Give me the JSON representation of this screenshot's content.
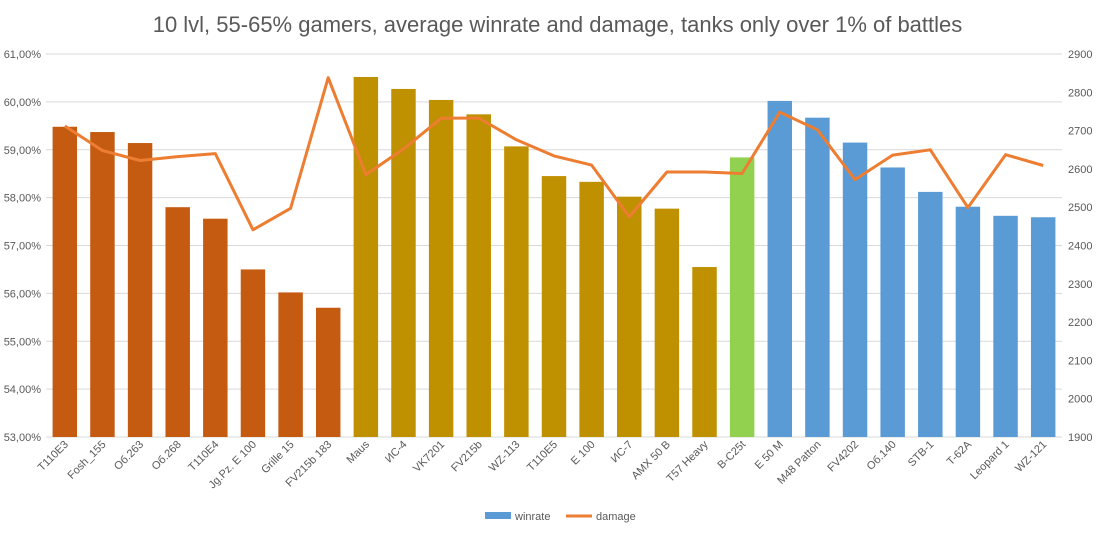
{
  "chart_data": {
    "type": "bar",
    "title": "10 lvl, 55-65% gamers, average winrate and damage, tanks only over 1% of battles",
    "categories": [
      "T110E3",
      "Fosh_155",
      "Об.263",
      "Об.268",
      "T110E4",
      "Jg.Pz. E 100",
      "Grille 15",
      "FV215b 183",
      "Maus",
      "ИС-4",
      "VK7201",
      "FV215b",
      "WZ-113",
      "T110E5",
      "E 100",
      "ИС-7",
      "AMX 50 B",
      "T57 Heavy",
      "B-C25t",
      "E 50 M",
      "M48 Patton",
      "FV4202",
      "Об.140",
      "STB-1",
      "T-62A",
      "Leopard 1",
      "WZ-121"
    ],
    "series": [
      {
        "name": "winrate",
        "type": "bar",
        "axis": "left",
        "values": [
          59.48,
          59.37,
          59.14,
          57.8,
          57.56,
          56.5,
          56.02,
          55.7,
          60.52,
          60.27,
          60.04,
          59.74,
          59.07,
          58.45,
          58.33,
          58.02,
          57.77,
          56.55,
          58.84,
          60.02,
          59.67,
          59.15,
          58.63,
          58.12,
          57.81,
          57.62,
          57.59
        ]
      },
      {
        "name": "damage",
        "type": "line",
        "axis": "right",
        "values": [
          2712,
          2648,
          2622,
          2632,
          2640,
          2441,
          2497,
          2838,
          2585,
          2652,
          2732,
          2733,
          2676,
          2634,
          2610,
          2475,
          2592,
          2592,
          2588,
          2748,
          2702,
          2572,
          2636,
          2650,
          2499,
          2637,
          2609
        ]
      }
    ],
    "bar_colors": [
      "#c55a11",
      "#c55a11",
      "#c55a11",
      "#c55a11",
      "#c55a11",
      "#c55a11",
      "#c55a11",
      "#c55a11",
      "#bf9000",
      "#bf9000",
      "#bf9000",
      "#bf9000",
      "#bf9000",
      "#bf9000",
      "#bf9000",
      "#bf9000",
      "#bf9000",
      "#bf9000",
      "#92d050",
      "#5b9bd5",
      "#5b9bd5",
      "#5b9bd5",
      "#5b9bd5",
      "#5b9bd5",
      "#5b9bd5",
      "#5b9bd5",
      "#5b9bd5"
    ],
    "line_color": "#ed7d31",
    "legend_bar_color": "#5b9bd5",
    "ylim_left": [
      53,
      61
    ],
    "yticks_left": [
      "53,00%",
      "54,00%",
      "55,00%",
      "56,00%",
      "57,00%",
      "58,00%",
      "59,00%",
      "60,00%",
      "61,00%"
    ],
    "ylim_right": [
      1900,
      2900
    ],
    "yticks_right": [
      "1900",
      "2000",
      "2100",
      "2200",
      "2300",
      "2400",
      "2500",
      "2600",
      "2700",
      "2800",
      "2900"
    ],
    "grid": true,
    "legend_position": "bottom",
    "legend": [
      "winrate",
      "damage"
    ]
  }
}
